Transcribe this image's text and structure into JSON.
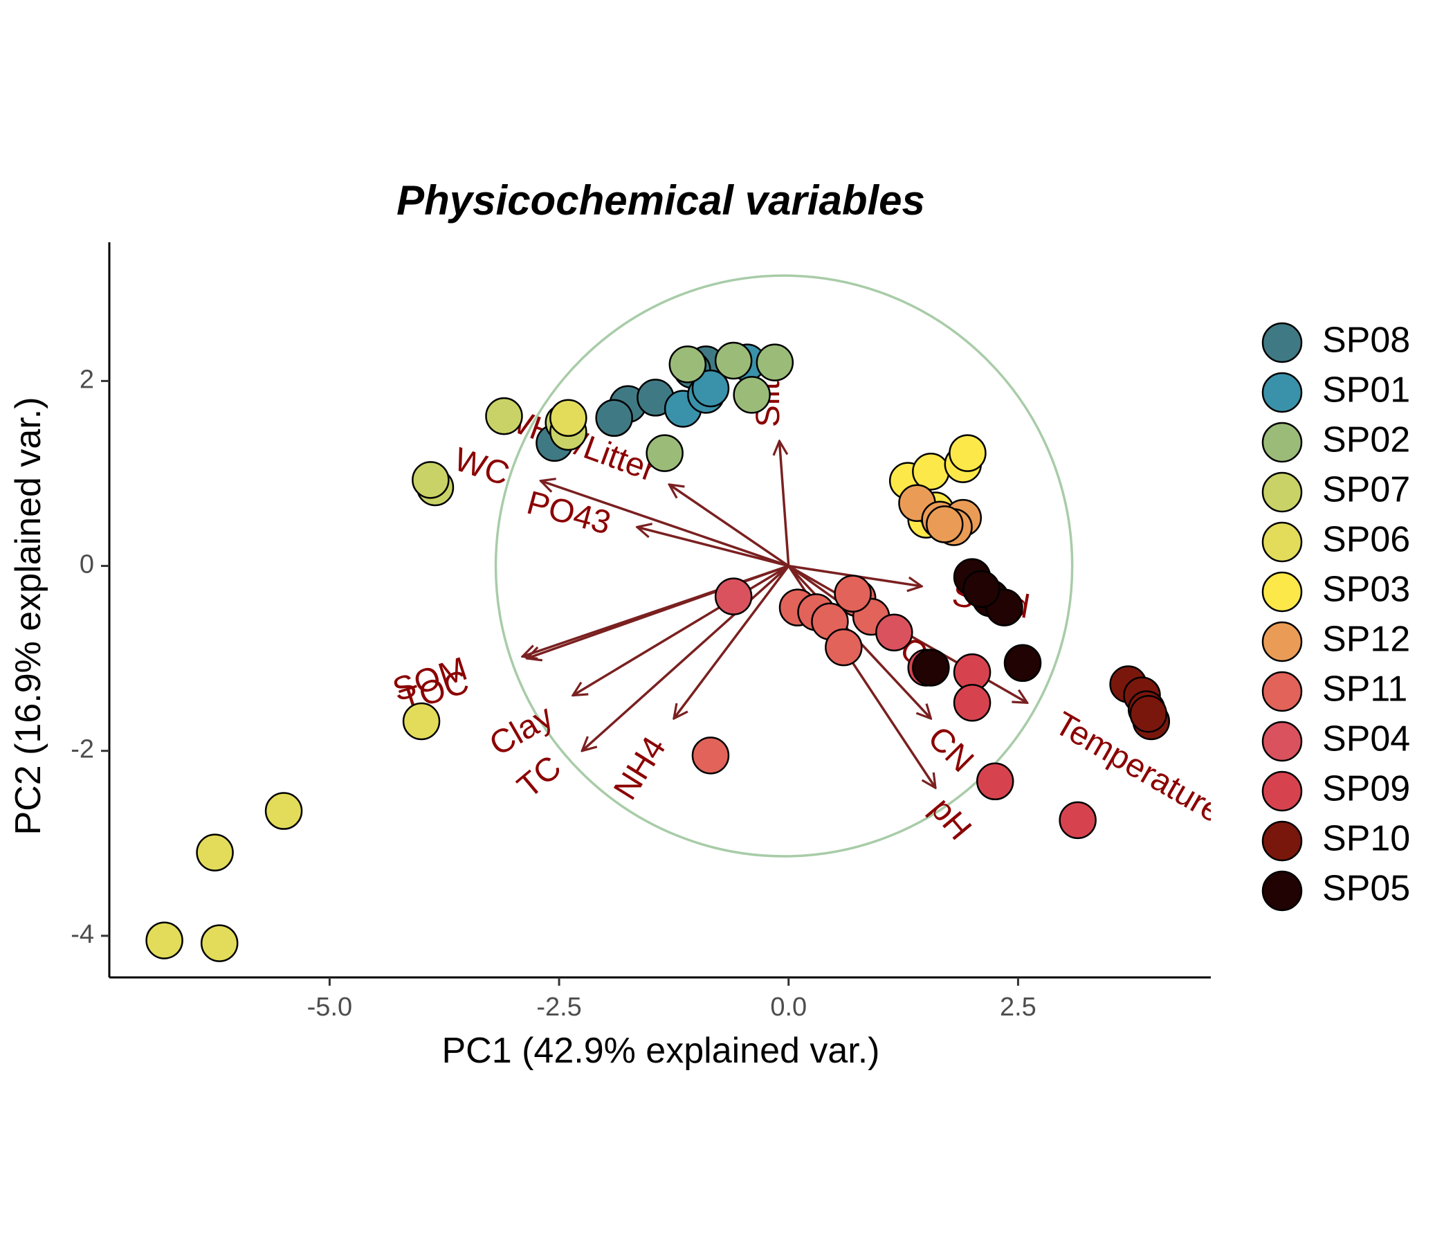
{
  "chart_data": {
    "type": "scatter",
    "title": "Physicochemical variables",
    "xlabel": "PC1 (42.9% explained var.)",
    "ylabel": "PC2 (16.9% explained var.)",
    "xlim": [
      -7.4,
      4.6
    ],
    "ylim": [
      -4.45,
      3.5
    ],
    "x_ticks": [
      -5.0,
      -2.5,
      0.0,
      2.5
    ],
    "x_tick_labels": [
      "-5.0",
      "-2.5",
      "0.0",
      "2.5"
    ],
    "y_ticks": [
      -4,
      -2,
      0,
      2
    ],
    "y_tick_labels": [
      "-4",
      "-2",
      "0",
      "2"
    ],
    "grid": false,
    "legend_position": "right",
    "circle": {
      "cx": -0.05,
      "cy": 0.0,
      "r": 3.14,
      "color": "#a8cca8"
    },
    "loadings_color": "#8b0000",
    "arrow_color": "#7a2020",
    "loadings": [
      {
        "label": "Silt",
        "x": -0.1,
        "y": 1.35,
        "label_x": -0.2,
        "label_y": 1.75,
        "angle": -90
      },
      {
        "label": "WHC/Litter",
        "x": -1.3,
        "y": 0.88,
        "label_x": -2.3,
        "label_y": 1.3,
        "angle": 20
      },
      {
        "label": "WC",
        "x": -2.7,
        "y": 0.92,
        "label_x": -3.35,
        "label_y": 1.05,
        "angle": 18
      },
      {
        "label": "PO43",
        "x": -1.65,
        "y": 0.42,
        "label_x": -2.4,
        "label_y": 0.55,
        "angle": 15
      },
      {
        "label": "Sand",
        "x": 1.45,
        "y": -0.22,
        "label_x": 2.2,
        "label_y": -0.4,
        "angle": 10
      },
      {
        "label": "SOM",
        "x": -2.9,
        "y": -0.98,
        "label_x": -3.9,
        "label_y": -1.25,
        "angle": -18
      },
      {
        "label": "TOC",
        "x": -2.85,
        "y": -1.0,
        "label_x": -3.85,
        "label_y": -1.38,
        "angle": -18
      },
      {
        "label": "Clay",
        "x": -2.35,
        "y": -1.4,
        "label_x": -2.9,
        "label_y": -1.8,
        "angle": -30
      },
      {
        "label": "TC",
        "x": -2.25,
        "y": -2.0,
        "label_x": -2.7,
        "label_y": -2.3,
        "angle": -40
      },
      {
        "label": "NH4",
        "x": -1.25,
        "y": -1.65,
        "label_x": -1.6,
        "label_y": -2.2,
        "angle": -58
      },
      {
        "label": "CN",
        "x": 1.55,
        "y": -1.65,
        "label_x": 1.75,
        "label_y": -2.0,
        "angle": 45
      },
      {
        "label": "pH",
        "x": 1.6,
        "y": -2.4,
        "label_x": 1.75,
        "label_y": -2.75,
        "angle": 50
      },
      {
        "label": "Temperature",
        "x": 2.6,
        "y": -1.48,
        "label_x": 3.8,
        "label_y": -2.2,
        "angle": 30
      },
      {
        "label": "C",
        "x": 1.2,
        "y": -0.85,
        "label_x": 1.35,
        "label_y": -0.95,
        "angle": 30
      }
    ],
    "series": [
      {
        "name": "SP08",
        "color": "#3f7a84",
        "points": [
          [
            -1.75,
            1.75
          ],
          [
            -1.45,
            1.82
          ],
          [
            -1.9,
            1.6
          ],
          [
            -2.55,
            1.33
          ],
          [
            -0.9,
            2.18
          ],
          [
            -1.05,
            2.12
          ]
        ]
      },
      {
        "name": "SP01",
        "color": "#3a92aa",
        "points": [
          [
            -1.15,
            1.7
          ],
          [
            -0.9,
            1.85
          ],
          [
            -0.85,
            1.92
          ],
          [
            -0.45,
            2.2
          ]
        ]
      },
      {
        "name": "SP02",
        "color": "#9bbc78",
        "points": [
          [
            -0.15,
            2.2
          ],
          [
            -0.6,
            2.22
          ],
          [
            -0.4,
            1.85
          ],
          [
            -1.1,
            2.18
          ],
          [
            -1.35,
            1.22
          ]
        ]
      },
      {
        "name": "SP07",
        "color": "#c9d266",
        "points": [
          [
            -3.1,
            1.62
          ],
          [
            -3.85,
            0.85
          ],
          [
            -3.9,
            0.93
          ],
          [
            -2.45,
            1.55
          ],
          [
            -2.4,
            1.45
          ]
        ]
      },
      {
        "name": "SP06",
        "color": "#e3dc5a",
        "points": [
          [
            -6.8,
            -4.05
          ],
          [
            -6.2,
            -4.08
          ],
          [
            -6.25,
            -3.1
          ],
          [
            -5.5,
            -2.65
          ],
          [
            -4.0,
            -1.68
          ],
          [
            -2.4,
            1.6
          ]
        ]
      },
      {
        "name": "SP03",
        "color": "#fde84a",
        "points": [
          [
            1.3,
            0.92
          ],
          [
            1.55,
            1.02
          ],
          [
            1.9,
            1.1
          ],
          [
            1.95,
            1.22
          ],
          [
            1.5,
            0.5
          ],
          [
            1.6,
            0.6
          ]
        ]
      },
      {
        "name": "SP12",
        "color": "#ea9c56",
        "points": [
          [
            1.4,
            0.68
          ],
          [
            1.65,
            0.5
          ],
          [
            1.9,
            0.52
          ],
          [
            1.8,
            0.42
          ],
          [
            1.7,
            0.45
          ]
        ]
      },
      {
        "name": "SP11",
        "color": "#e1635a",
        "points": [
          [
            0.1,
            -0.45
          ],
          [
            0.3,
            -0.5
          ],
          [
            0.45,
            -0.6
          ],
          [
            0.6,
            -0.88
          ],
          [
            0.75,
            -0.35
          ],
          [
            0.9,
            -0.55
          ],
          [
            0.7,
            -0.3
          ],
          [
            -0.85,
            -2.05
          ]
        ]
      },
      {
        "name": "SP04",
        "color": "#d9525e",
        "points": [
          [
            -0.6,
            -0.33
          ],
          [
            1.15,
            -0.72
          ]
        ]
      },
      {
        "name": "SP09",
        "color": "#d6434f",
        "points": [
          [
            1.5,
            -1.1
          ],
          [
            2.0,
            -1.15
          ],
          [
            2.0,
            -1.48
          ],
          [
            2.25,
            -2.33
          ],
          [
            3.15,
            -2.75
          ]
        ]
      },
      {
        "name": "SP10",
        "color": "#7a170d",
        "points": [
          [
            3.7,
            -1.28
          ],
          [
            3.85,
            -1.4
          ],
          [
            3.9,
            -1.55
          ],
          [
            3.95,
            -1.68
          ],
          [
            3.92,
            -1.6
          ]
        ]
      },
      {
        "name": "SP05",
        "color": "#200302",
        "points": [
          [
            2.0,
            -0.12
          ],
          [
            2.2,
            -0.35
          ],
          [
            2.35,
            -0.45
          ],
          [
            2.55,
            -1.05
          ],
          [
            1.55,
            -1.1
          ],
          [
            2.1,
            -0.25
          ]
        ]
      }
    ]
  }
}
